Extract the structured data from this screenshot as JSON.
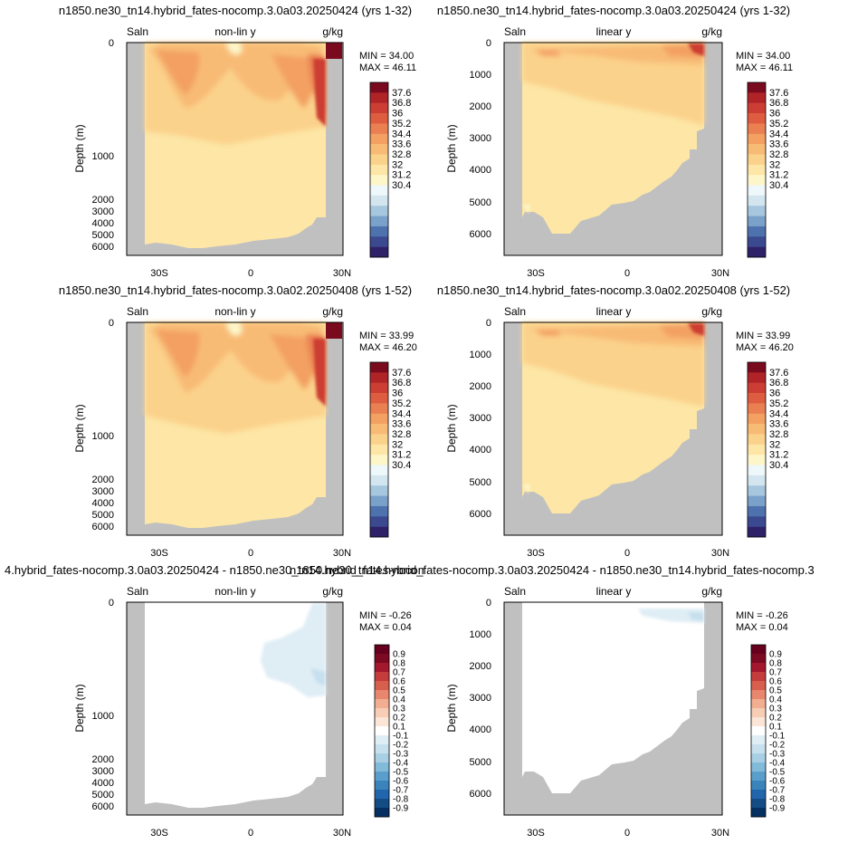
{
  "figure": {
    "titles": [
      "n1850.ne30_tn14.hybrid_fates-nocomp.3.0a03.20250424 (yrs 1-32)",
      "n1850.ne30_tn14.hybrid_fates-nocomp.3.0a03.20250424 (yrs 1-32)",
      "n1850.ne30_tn14.hybrid_fates-nocomp.3.0a02.20250408 (yrs 1-52)",
      "n1850.ne30_tn14.hybrid_fates-nocomp.3.0a02.20250408 (yrs 1-52)",
      "4.hybrid_fates-nocomp.3.0a03.20250424 - n1850.ne30_tn14.hybrid_fates-nocomp.3.0a02.20250408",
      "n1850.ne30_tn14.hybrid_fates-nocomp.3.0a03.20250424 - n1850.ne30_tn14.hybrid_fates-nocomp.3"
    ]
  },
  "chart_data": [
    {
      "type": "heatmap",
      "panel": "row1-left",
      "left_label": "Saln",
      "center_label": "non-lin y",
      "units": "g/kg",
      "ylabel": "Depth (m)",
      "x_ticks": [
        "30S",
        "0",
        "30N"
      ],
      "y_ticks": [
        "0",
        "1000",
        "2000",
        "3000",
        "4000",
        "5000",
        "6000"
      ],
      "y_scale": "non-linear",
      "min_label": "MIN = 34.00",
      "max_label": "MAX = 46.11",
      "colorbar": [
        "37.6",
        "36.8",
        "36",
        "35.2",
        "34.4",
        "33.6",
        "32.8",
        "32",
        "31.2",
        "30.4"
      ]
    },
    {
      "type": "heatmap",
      "panel": "row1-right",
      "left_label": "Saln",
      "center_label": "linear y",
      "units": "g/kg",
      "ylabel": "Depth (m)",
      "x_ticks": [
        "30S",
        "0",
        "30N"
      ],
      "y_ticks": [
        "0",
        "1000",
        "2000",
        "3000",
        "4000",
        "5000",
        "6000"
      ],
      "y_scale": "linear",
      "min_label": "MIN = 34.00",
      "max_label": "MAX = 46.11",
      "colorbar": [
        "37.6",
        "36.8",
        "36",
        "35.2",
        "34.4",
        "33.6",
        "32.8",
        "32",
        "31.2",
        "30.4"
      ]
    },
    {
      "type": "heatmap",
      "panel": "row2-left",
      "left_label": "Saln",
      "center_label": "non-lin y",
      "units": "g/kg",
      "ylabel": "Depth (m)",
      "x_ticks": [
        "30S",
        "0",
        "30N"
      ],
      "y_ticks": [
        "0",
        "1000",
        "2000",
        "3000",
        "4000",
        "5000",
        "6000"
      ],
      "y_scale": "non-linear",
      "min_label": "MIN = 33.99",
      "max_label": "MAX = 46.20",
      "colorbar": [
        "37.6",
        "36.8",
        "36",
        "35.2",
        "34.4",
        "33.6",
        "32.8",
        "32",
        "31.2",
        "30.4"
      ]
    },
    {
      "type": "heatmap",
      "panel": "row2-right",
      "left_label": "Saln",
      "center_label": "linear y",
      "units": "g/kg",
      "ylabel": "Depth (m)",
      "x_ticks": [
        "30S",
        "0",
        "30N"
      ],
      "y_ticks": [
        "0",
        "1000",
        "2000",
        "3000",
        "4000",
        "5000",
        "6000"
      ],
      "y_scale": "linear",
      "min_label": "MIN = 33.99",
      "max_label": "MAX = 46.20",
      "colorbar": [
        "37.6",
        "36.8",
        "36",
        "35.2",
        "34.4",
        "33.6",
        "32.8",
        "32",
        "31.2",
        "30.4"
      ]
    },
    {
      "type": "heatmap",
      "panel": "row3-left",
      "left_label": "Saln",
      "center_label": "non-lin y",
      "units": "g/kg",
      "ylabel": "Depth (m)",
      "x_ticks": [
        "30S",
        "0",
        "30N"
      ],
      "y_ticks": [
        "0",
        "1000",
        "2000",
        "3000",
        "4000",
        "5000",
        "6000"
      ],
      "y_scale": "non-linear",
      "min_label": "MIN = -0.26",
      "max_label": "MAX =  0.04",
      "colorbar": [
        "0.9",
        "0.8",
        "0.7",
        "0.6",
        "0.5",
        "0.4",
        "0.3",
        "0.2",
        "0.1",
        "-0.1",
        "-0.2",
        "-0.3",
        "-0.4",
        "-0.5",
        "-0.6",
        "-0.7",
        "-0.8",
        "-0.9"
      ]
    },
    {
      "type": "heatmap",
      "panel": "row3-right",
      "left_label": "Saln",
      "center_label": "linear y",
      "units": "g/kg",
      "ylabel": "Depth (m)",
      "x_ticks": [
        "30S",
        "0",
        "30N"
      ],
      "y_ticks": [
        "0",
        "1000",
        "2000",
        "3000",
        "4000",
        "5000",
        "6000"
      ],
      "y_scale": "linear",
      "min_label": "MIN = -0.26",
      "max_label": "MAX =  0.04",
      "colorbar": [
        "0.9",
        "0.8",
        "0.7",
        "0.6",
        "0.5",
        "0.4",
        "0.3",
        "0.2",
        "0.1",
        "-0.1",
        "-0.2",
        "-0.3",
        "-0.4",
        "-0.5",
        "-0.6",
        "-0.7",
        "-0.8",
        "-0.9"
      ]
    }
  ],
  "colors": {
    "land": "#c0c0c0",
    "abs_scale": [
      "#2e2167",
      "#3b4a90",
      "#4e72ae",
      "#7aa1c9",
      "#a6c7de",
      "#d3e6f0",
      "#eef7f9",
      "#fdf6c8",
      "#fde6a6",
      "#fbd28b",
      "#f8bb76",
      "#f3a062",
      "#ea7f51",
      "#de5d41",
      "#cc3e33",
      "#b02428",
      "#7a0b1e"
    ],
    "diff_scale": [
      "#053061",
      "#144c85",
      "#2166ac",
      "#3a84bb",
      "#5a9fcb",
      "#82bad9",
      "#a8cfe4",
      "#c7e0ee",
      "#dfedf5",
      "#ffffff",
      "#fbe5d6",
      "#f7cdb5",
      "#f2ae90",
      "#e8876d",
      "#d6604d",
      "#c43c3c",
      "#a3182d",
      "#7c0a22",
      "#67001f"
    ]
  }
}
